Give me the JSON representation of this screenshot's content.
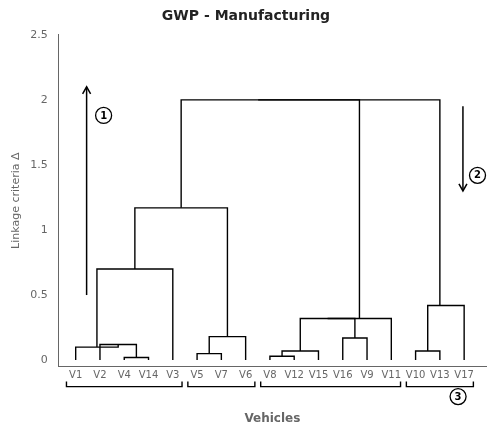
{
  "chart_data": {
    "type": "dendrogram",
    "title": "GWP - Manufacturing",
    "xlabel": "Vehicles",
    "ylabel": "Linkage criteria Δ",
    "color": "#000000",
    "grid": false,
    "xlim": [
      0.3,
      17.9
    ],
    "xticks": [
      {
        "value": 1,
        "label": "V1"
      },
      {
        "value": 2,
        "label": "V2"
      },
      {
        "value": 3,
        "label": "V4"
      },
      {
        "value": 4,
        "label": "V14"
      },
      {
        "value": 5,
        "label": "V3"
      },
      {
        "value": 6,
        "label": "V5"
      },
      {
        "value": 7,
        "label": "V7"
      },
      {
        "value": 8,
        "label": "V6"
      },
      {
        "value": 9,
        "label": "V8"
      },
      {
        "value": 10,
        "label": "V12"
      },
      {
        "value": 11,
        "label": "V15"
      },
      {
        "value": 12,
        "label": "V16"
      },
      {
        "value": 13,
        "label": "V9"
      },
      {
        "value": 14,
        "label": "V11"
      },
      {
        "value": 15,
        "label": "V10"
      },
      {
        "value": 16,
        "label": "V13"
      },
      {
        "value": 17,
        "label": "V17"
      }
    ],
    "ylim": [
      -0.05,
      2.5
    ],
    "yticks": [
      0,
      0.5,
      1,
      1.5,
      2,
      2.5
    ],
    "merges": [
      {
        "x1": 3,
        "x2": 4,
        "h": 0.02,
        "hL": 0.0,
        "hR": 0.0
      },
      {
        "x1": 2,
        "x2": 3.5,
        "h": 0.12,
        "hL": 0.0,
        "hR": 0.02
      },
      {
        "x1": 1,
        "x2": 2.75,
        "h": 0.1,
        "hL": 0.0,
        "hR": 0.12
      },
      {
        "x1": 1.875,
        "x2": 5,
        "h": 0.7,
        "hL": 0.1,
        "hR": 0.0
      },
      {
        "x1": 6,
        "x2": 7,
        "h": 0.05,
        "hL": 0.0,
        "hR": 0.0
      },
      {
        "x1": 6.5,
        "x2": 8,
        "h": 0.18,
        "hL": 0.05,
        "hR": 0.0
      },
      {
        "x1": 3.4375,
        "x2": 7.25,
        "h": 1.17,
        "hL": 0.7,
        "hR": 0.18
      },
      {
        "x1": 9,
        "x2": 10,
        "h": 0.03,
        "hL": 0.0,
        "hR": 0.0
      },
      {
        "x1": 9.5,
        "x2": 11,
        "h": 0.07,
        "hL": 0.03,
        "hR": 0.0
      },
      {
        "x1": 12,
        "x2": 13,
        "h": 0.17,
        "hL": 0.0,
        "hR": 0.0
      },
      {
        "x1": 10.25,
        "x2": 12.5,
        "h": 0.32,
        "hL": 0.07,
        "hR": 0.17
      },
      {
        "x1": 11.375,
        "x2": 14,
        "h": 0.32,
        "hL": 0.32,
        "hR": 0.0
      },
      {
        "x1": 15,
        "x2": 16,
        "h": 0.07,
        "hL": 0.0,
        "hR": 0.0
      },
      {
        "x1": 15.5,
        "x2": 17,
        "h": 0.42,
        "hL": 0.07,
        "hR": 0.0
      },
      {
        "x1": 5.34375,
        "x2": 12.6875,
        "h": 2.0,
        "hL": 1.17,
        "hR": 0.32
      },
      {
        "x1": 8.515625,
        "x2": 16.0,
        "h": 2.0,
        "hL": 2.0,
        "hR": 0.42
      }
    ],
    "brackets": [
      {
        "x1": 0.62,
        "x2": 5.38
      },
      {
        "x1": 5.62,
        "x2": 8.38
      },
      {
        "x1": 8.62,
        "x2": 14.38
      },
      {
        "x1": 14.62,
        "x2": 17.38
      }
    ],
    "annotations": [
      {
        "text": "1",
        "x": 2.15,
        "y": 1.88,
        "arrow": {
          "x": 1.45,
          "y0": 0.5,
          "y1": 2.1
        }
      },
      {
        "text": "2",
        "x": 17.55,
        "y": 1.42,
        "arrow": {
          "x": 16.95,
          "y0": 1.95,
          "y1": 1.3
        }
      },
      {
        "text": "3",
        "x": 16.75
      }
    ]
  }
}
